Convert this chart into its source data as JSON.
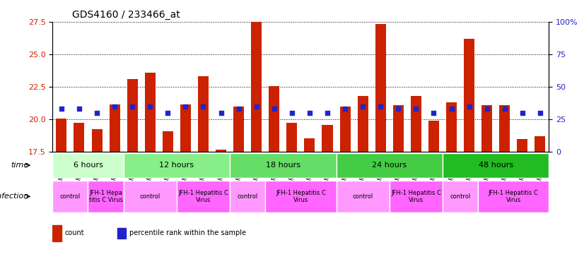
{
  "title": "GDS4160 / 233466_at",
  "samples": [
    "GSM523814",
    "GSM523815",
    "GSM523800",
    "GSM523801",
    "GSM523816",
    "GSM523817",
    "GSM523818",
    "GSM523802",
    "GSM523803",
    "GSM523804",
    "GSM523819",
    "GSM523820",
    "GSM523821",
    "GSM523805",
    "GSM523806",
    "GSM523807",
    "GSM523822",
    "GSM523823",
    "GSM523824",
    "GSM523808",
    "GSM523809",
    "GSM523810",
    "GSM523825",
    "GSM523826",
    "GSM523827",
    "GSM523811",
    "GSM523812",
    "GSM523813"
  ],
  "counts": [
    20.05,
    19.75,
    19.25,
    21.15,
    23.1,
    23.6,
    19.1,
    21.15,
    23.3,
    17.65,
    20.95,
    27.5,
    22.55,
    19.7,
    18.55,
    19.55,
    21.0,
    21.8,
    27.3,
    21.1,
    21.8,
    19.9,
    21.3,
    26.2,
    21.1,
    21.1,
    18.5,
    18.7
  ],
  "percentile_ranks": [
    33,
    33,
    30,
    35,
    35,
    35,
    30,
    35,
    35,
    30,
    33,
    35,
    33,
    30,
    30,
    30,
    33,
    35,
    35,
    33,
    33,
    30,
    33,
    35,
    33,
    33,
    30,
    30
  ],
  "bar_color": "#cc2200",
  "dot_color": "#2222cc",
  "ylim_left": [
    17.5,
    27.5
  ],
  "ylim_right": [
    0,
    100
  ],
  "yticks_left": [
    17.5,
    20.0,
    22.5,
    25.0,
    27.5
  ],
  "yticks_right": [
    0,
    25,
    50,
    75,
    100
  ],
  "grid_color": "black",
  "bg_color": "#e8e8e8",
  "time_groups": [
    {
      "label": "6 hours",
      "start": 0,
      "end": 4,
      "color": "#ccffcc"
    },
    {
      "label": "12 hours",
      "start": 4,
      "end": 10,
      "color": "#99ee99"
    },
    {
      "label": "18 hours",
      "start": 10,
      "end": 16,
      "color": "#66dd66"
    },
    {
      "label": "24 hours",
      "start": 16,
      "end": 22,
      "color": "#44cc44"
    },
    {
      "label": "48 hours",
      "start": 22,
      "end": 28,
      "color": "#22bb22"
    }
  ],
  "infection_groups": [
    {
      "label": "control",
      "start": 0,
      "end": 2,
      "color": "#ff99ff"
    },
    {
      "label": "JFH-1 Hepa\ntitis C Virus",
      "start": 2,
      "end": 4,
      "color": "#ff66ff"
    },
    {
      "label": "control",
      "start": 4,
      "end": 7,
      "color": "#ff99ff"
    },
    {
      "label": "JFH-1 Hepatitis C\nVirus",
      "start": 7,
      "end": 10,
      "color": "#ff66ff"
    },
    {
      "label": "control",
      "start": 10,
      "end": 12,
      "color": "#ff99ff"
    },
    {
      "label": "JFH-1 Hepatitis C\nVirus",
      "start": 12,
      "end": 16,
      "color": "#ff66ff"
    },
    {
      "label": "control",
      "start": 16,
      "end": 19,
      "color": "#ff99ff"
    },
    {
      "label": "JFH-1 Hepatitis C\nVirus",
      "start": 19,
      "end": 22,
      "color": "#ff66ff"
    },
    {
      "label": "control",
      "start": 22,
      "end": 24,
      "color": "#ff99ff"
    },
    {
      "label": "JFH-1 Hepatitis C\nVirus",
      "start": 24,
      "end": 28,
      "color": "#ff66ff"
    }
  ]
}
